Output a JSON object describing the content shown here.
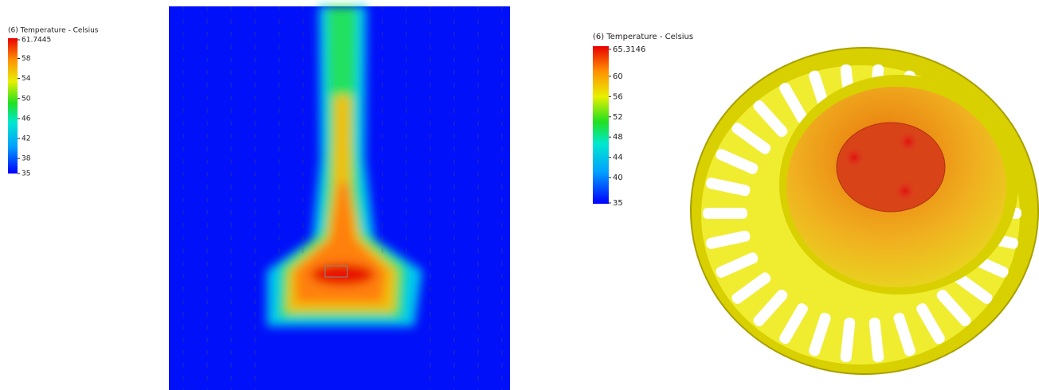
{
  "legends": [
    {
      "title": "(6) Temperature - Celsius",
      "ticks": [
        "61.7445",
        "58",
        "54",
        "50",
        "46",
        "42",
        "38",
        "35"
      ]
    },
    {
      "title": "(6) Temperature - Celsius",
      "ticks": [
        "65.3146",
        "60",
        "56",
        "52",
        "48",
        "44",
        "40",
        "35"
      ]
    }
  ]
}
